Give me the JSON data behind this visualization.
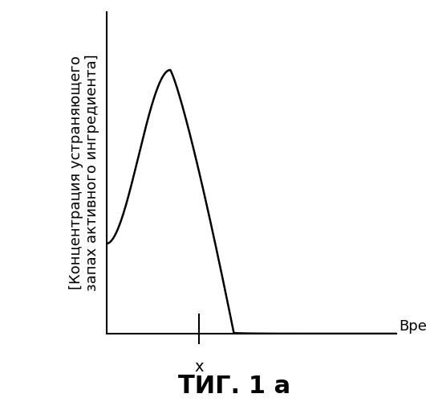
{
  "title": "ΤИГ. 1 а",
  "xlabel": "Время",
  "ylabel": "[Концентрация устраняющего\nзапах активного ингредиента]",
  "x_tick_label": "x",
  "x_tick_pos": 0.32,
  "xlim": [
    0,
    1.0
  ],
  "ylim": [
    0,
    1.0
  ],
  "curve_color": "#000000",
  "background_color": "#ffffff",
  "title_fontsize": 22,
  "xlabel_fontsize": 13,
  "ylabel_fontsize": 13,
  "tick_fontsize": 14,
  "curve_start_y": 0.28,
  "curve_peak_x": 0.22,
  "curve_peak_y": 0.82,
  "curve_end_x": 0.44
}
